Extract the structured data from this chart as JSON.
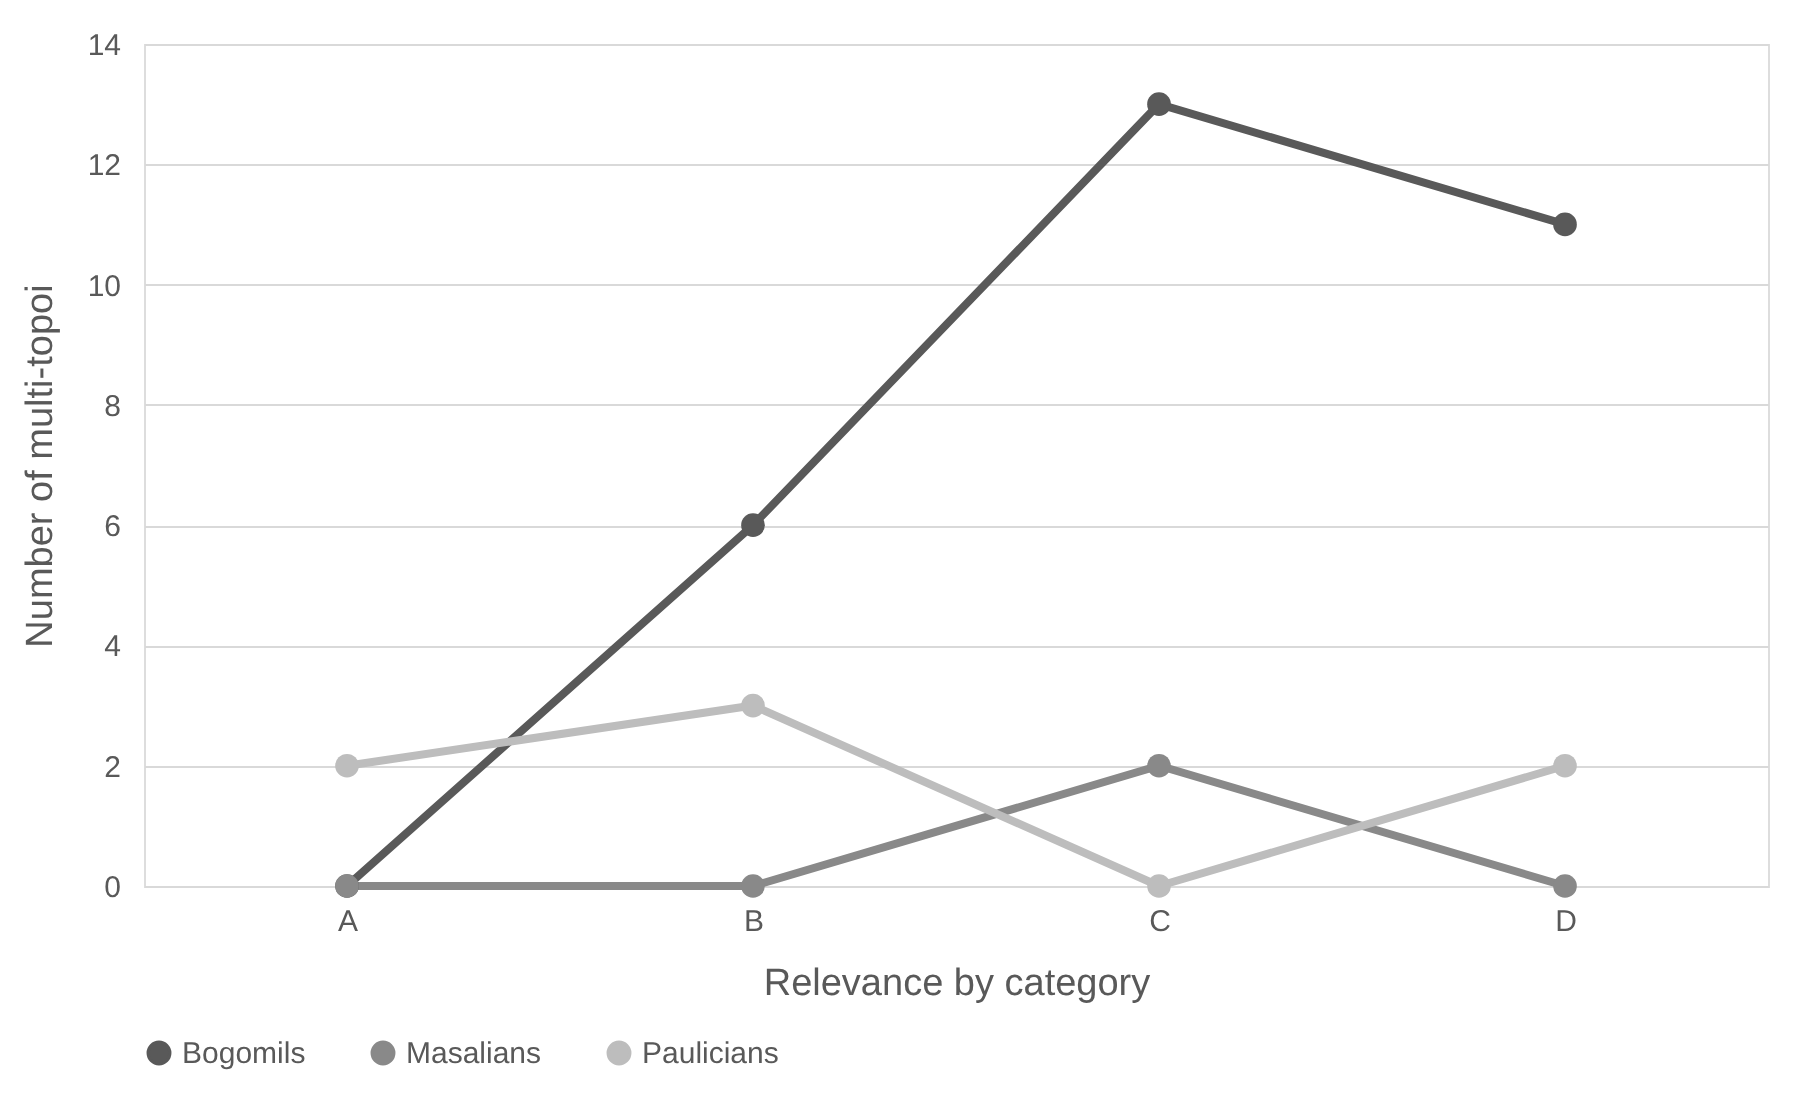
{
  "chart_data": {
    "type": "line",
    "xlabel": "Relevance by category",
    "ylabel": "Number of multi-topoi",
    "categories": [
      "A",
      "B",
      "C",
      "D"
    ],
    "series": [
      {
        "name": "Bogomils",
        "color": "#595959",
        "values": [
          0,
          6,
          13,
          11
        ]
      },
      {
        "name": "Masalians",
        "color": "#898989",
        "values": [
          0,
          0,
          2,
          0
        ]
      },
      {
        "name": "Paulicians",
        "color": "#bdbdbd",
        "values": [
          2,
          3,
          0,
          2
        ]
      }
    ],
    "ylim": [
      0,
      14
    ],
    "yticks": [
      0,
      2,
      4,
      6,
      8,
      10,
      12,
      14
    ],
    "grid": "y",
    "legend": "bottom",
    "marker": "circle",
    "line_style": "solid"
  }
}
